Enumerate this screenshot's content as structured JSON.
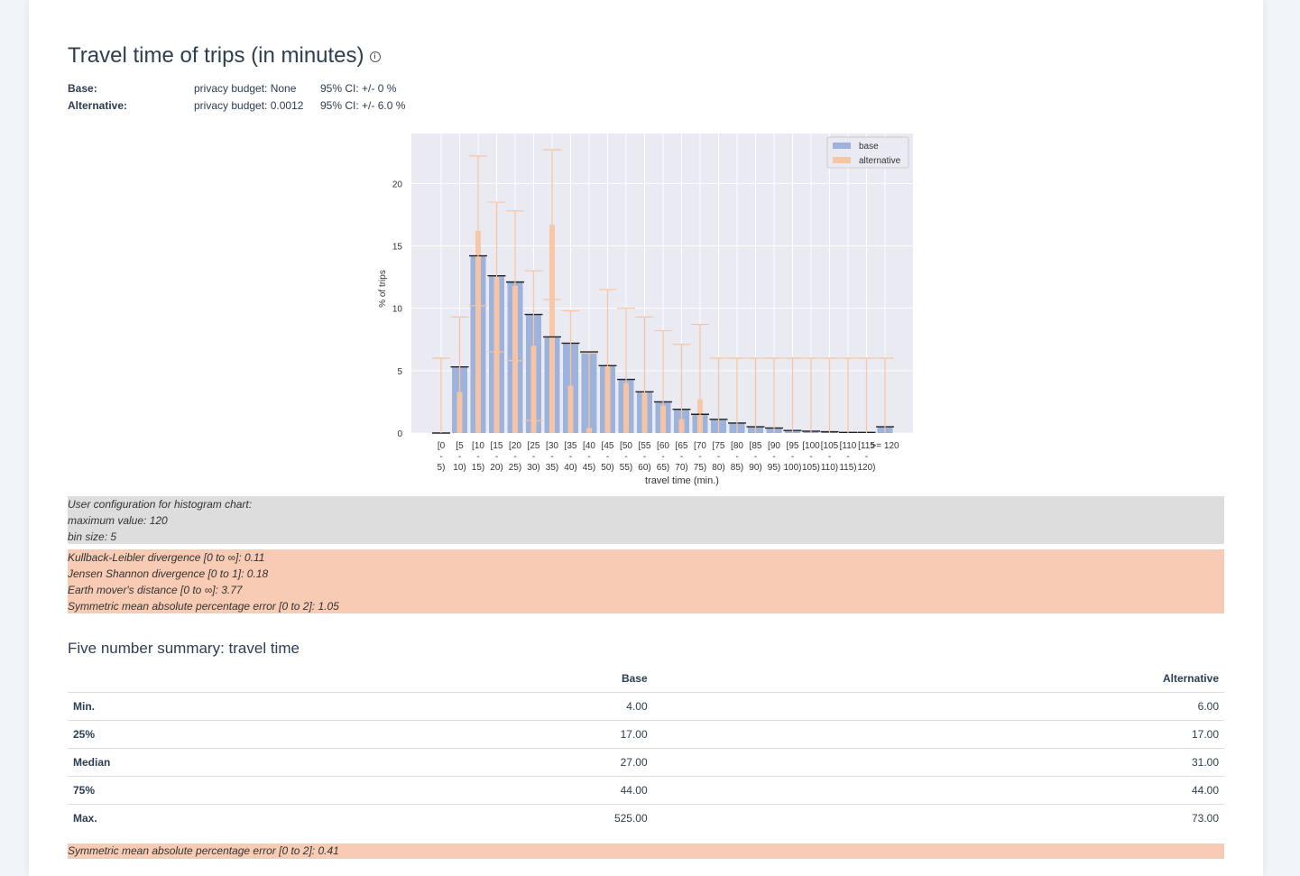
{
  "title": "Travel time of trips (in minutes)",
  "info_icon": "info-icon",
  "meta": [
    {
      "label": "Base:",
      "budget": "privacy budget: None",
      "ci": "95% CI: +/- 0 %"
    },
    {
      "label": "Alternative:",
      "budget": "privacy budget: 0.0012",
      "ci": "95% CI: +/- 6.0 %"
    }
  ],
  "chart_data": {
    "type": "bar",
    "xlabel": "travel time (min.)",
    "ylabel": "% of trips",
    "ylim": [
      0,
      24
    ],
    "yticks": [
      0,
      5,
      10,
      15,
      20
    ],
    "grid": true,
    "legend_placement": "top-right",
    "categories": [
      {
        "l1": "[0",
        "l2": "-",
        "l3": "5)"
      },
      {
        "l1": "[5",
        "l2": "-",
        "l3": "10)"
      },
      {
        "l1": "[10",
        "l2": "-",
        "l3": "15)"
      },
      {
        "l1": "[15",
        "l2": "-",
        "l3": "20)"
      },
      {
        "l1": "[20",
        "l2": "-",
        "l3": "25)"
      },
      {
        "l1": "[25",
        "l2": "-",
        "l3": "30)"
      },
      {
        "l1": "[30",
        "l2": "-",
        "l3": "35)"
      },
      {
        "l1": "[35",
        "l2": "-",
        "l3": "40)"
      },
      {
        "l1": "[40",
        "l2": "-",
        "l3": "45)"
      },
      {
        "l1": "[45",
        "l2": "-",
        "l3": "50)"
      },
      {
        "l1": "[50",
        "l2": "-",
        "l3": "55)"
      },
      {
        "l1": "[55",
        "l2": "-",
        "l3": "60)"
      },
      {
        "l1": "[60",
        "l2": "-",
        "l3": "65)"
      },
      {
        "l1": "[65",
        "l2": "-",
        "l3": "70)"
      },
      {
        "l1": "[70",
        "l2": "-",
        "l3": "75)"
      },
      {
        "l1": "[75",
        "l2": "-",
        "l3": "80)"
      },
      {
        "l1": "[80",
        "l2": "-",
        "l3": "85)"
      },
      {
        "l1": "[85",
        "l2": "-",
        "l3": "90)"
      },
      {
        "l1": "[90",
        "l2": "-",
        "l3": "95)"
      },
      {
        "l1": "[95",
        "l2": "-",
        "l3": "100)"
      },
      {
        "l1": "[100",
        "l2": "-",
        "l3": "105)"
      },
      {
        "l1": "[105",
        "l2": "-",
        "l3": "110)"
      },
      {
        "l1": "[110",
        "l2": "-",
        "l3": "115)"
      },
      {
        "l1": "[115",
        "l2": "-",
        "l3": "120)"
      },
      {
        "l1": ">= 120",
        "l2": "",
        "l3": ""
      }
    ],
    "series": [
      {
        "name": "base",
        "color": "#9db3dc",
        "values": [
          0.0,
          5.3,
          14.2,
          12.6,
          12.1,
          9.5,
          7.7,
          7.2,
          6.5,
          5.4,
          4.3,
          3.3,
          2.5,
          1.9,
          1.5,
          1.1,
          0.8,
          0.5,
          0.4,
          0.2,
          0.15,
          0.1,
          0.05,
          0.05,
          0.5
        ],
        "error": [
          0,
          0,
          0,
          0,
          0,
          0,
          0,
          0,
          0,
          0,
          0,
          0,
          0,
          0,
          0,
          0,
          0,
          0,
          0,
          0,
          0,
          0,
          0,
          0,
          0
        ]
      },
      {
        "name": "alternative",
        "color": "#f8c5a2",
        "values": [
          0.0,
          3.3,
          16.2,
          12.5,
          11.8,
          7.0,
          16.7,
          3.8,
          0.4,
          5.5,
          4.0,
          3.3,
          2.2,
          1.1,
          2.7,
          0,
          0,
          0,
          0,
          0,
          0,
          0,
          0,
          0,
          0
        ],
        "error": [
          6.0,
          6.0,
          6.0,
          6.0,
          6.0,
          6.0,
          6.0,
          6.0,
          6.0,
          6.0,
          6.0,
          6.0,
          6.0,
          6.0,
          6.0,
          6.0,
          6.0,
          6.0,
          6.0,
          6.0,
          6.0,
          6.0,
          6.0,
          6.0,
          6.0
        ]
      }
    ]
  },
  "config": {
    "lines": [
      "User configuration for histogram chart:",
      "maximum value: 120",
      "bin size: 5"
    ]
  },
  "metrics": {
    "lines": [
      "Kullback-Leibler divergence [0 to ∞]: 0.11",
      "Jensen Shannon divergence [0 to 1]: 0.18",
      "Earth mover's distance [0 to ∞]: 3.77",
      "Symmetric mean absolute percentage error [0 to 2]: 1.05"
    ]
  },
  "summary": {
    "title": "Five number summary: travel time",
    "col_base": "Base",
    "col_alt": "Alternative",
    "rows": [
      {
        "stat": "Min.",
        "base": "4.00",
        "alt": "6.00"
      },
      {
        "stat": "25%",
        "base": "17.00",
        "alt": "17.00"
      },
      {
        "stat": "Median",
        "base": "27.00",
        "alt": "31.00"
      },
      {
        "stat": "75%",
        "base": "44.00",
        "alt": "44.00"
      },
      {
        "stat": "Max.",
        "base": "525.00",
        "alt": "73.00"
      }
    ],
    "smape": "Symmetric mean absolute percentage error [0 to 2]: 0.41"
  }
}
